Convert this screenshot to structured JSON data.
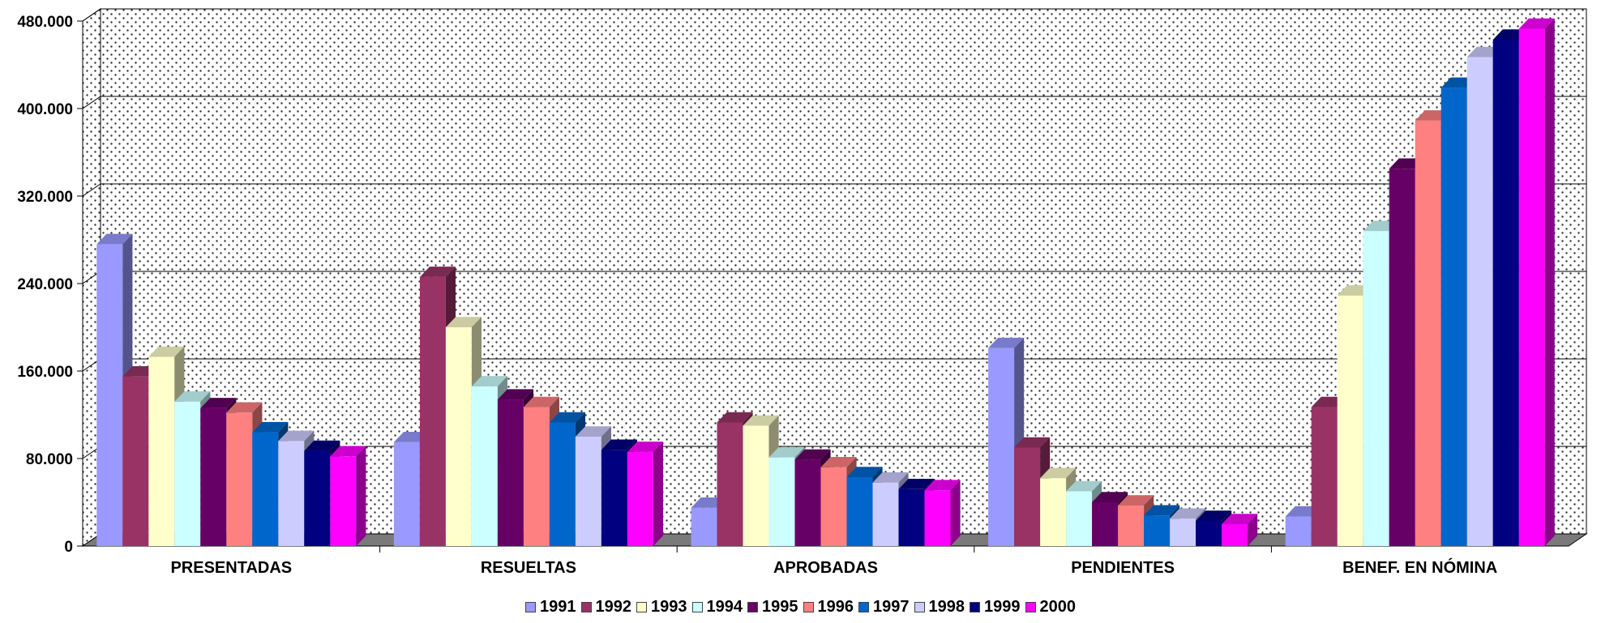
{
  "chart_data": {
    "type": "bar",
    "three_d": true,
    "categories": [
      "PRESENTADAS",
      "RESUELTAS",
      "APROBADAS",
      "PENDIENTES",
      "BENEF. EN NÓMINA"
    ],
    "ylim": [
      0,
      480000
    ],
    "yticks": [
      0,
      80000,
      160000,
      240000,
      320000,
      400000,
      480000
    ],
    "ytick_labels": [
      "0",
      "80.000",
      "160.000",
      "240.000",
      "320.000",
      "400.000",
      "480.000"
    ],
    "grid": true,
    "background_pattern": "dotted",
    "legend_position": "bottom",
    "series": [
      {
        "name": "1991",
        "color": "#9999FF",
        "values": [
          276000,
          95000,
          35000,
          181000,
          27000
        ]
      },
      {
        "name": "1992",
        "color": "#993366",
        "values": [
          155000,
          246000,
          113000,
          90000,
          127000
        ]
      },
      {
        "name": "1993",
        "color": "#FFFFCC",
        "values": [
          173000,
          200000,
          110000,
          62000,
          229000
        ]
      },
      {
        "name": "1994",
        "color": "#CCFFFF",
        "values": [
          132000,
          146000,
          81000,
          50000,
          288000
        ]
      },
      {
        "name": "1995",
        "color": "#660066",
        "values": [
          126000,
          134000,
          79000,
          40000,
          345000
        ]
      },
      {
        "name": "1996",
        "color": "#FF8080",
        "values": [
          122000,
          127000,
          72000,
          37000,
          389000
        ]
      },
      {
        "name": "1997",
        "color": "#0066CC",
        "values": [
          104000,
          113000,
          63000,
          28000,
          419000
        ]
      },
      {
        "name": "1998",
        "color": "#CCCCFF",
        "values": [
          96000,
          100000,
          58000,
          25000,
          447000
        ]
      },
      {
        "name": "1999",
        "color": "#000080",
        "values": [
          87000,
          88000,
          52000,
          23000,
          463000
        ]
      },
      {
        "name": "2000",
        "color": "#FF00FF",
        "values": [
          82000,
          86000,
          51000,
          20000,
          473000
        ]
      }
    ]
  }
}
